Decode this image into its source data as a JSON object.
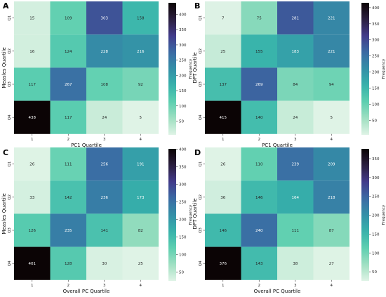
{
  "chart_data": [
    {
      "type": "heatmap",
      "panel_letter": "A",
      "xlabel": "PC1 Quartile",
      "ylabel": "Measles Quartile",
      "x_categories": [
        "1",
        "2",
        "3",
        "4"
      ],
      "y_categories": [
        "Q1",
        "Q2",
        "Q3",
        "Q4"
      ],
      "values": [
        [
          15,
          109,
          303,
          158
        ],
        [
          16,
          124,
          228,
          216
        ],
        [
          117,
          267,
          108,
          92
        ],
        [
          438,
          117,
          24,
          5
        ]
      ],
      "colorbar": {
        "label": "Frequency",
        "min": 5,
        "max": 438,
        "ticks": [
          50,
          100,
          150,
          200,
          250,
          300,
          350,
          400
        ]
      }
    },
    {
      "type": "heatmap",
      "panel_letter": "B",
      "xlabel": "PC1 Quartile",
      "ylabel": "DPT Quartile",
      "x_categories": [
        "1",
        "2",
        "3",
        "4"
      ],
      "y_categories": [
        "Q1",
        "Q2",
        "Q3",
        "Q4"
      ],
      "values": [
        [
          7,
          75,
          281,
          221
        ],
        [
          25,
          155,
          183,
          221
        ],
        [
          137,
          269,
          84,
          94
        ],
        [
          415,
          140,
          24,
          5
        ]
      ],
      "colorbar": {
        "label": "Frequency",
        "min": 5,
        "max": 415,
        "ticks": [
          50,
          100,
          150,
          200,
          250,
          300,
          350,
          400
        ]
      }
    },
    {
      "type": "heatmap",
      "panel_letter": "C",
      "xlabel": "Overall PC Quartile",
      "ylabel": "Measles Quartile",
      "x_categories": [
        "1",
        "2",
        "3",
        "4"
      ],
      "y_categories": [
        "Q1",
        "Q2",
        "Q3",
        "Q4"
      ],
      "values": [
        [
          26,
          111,
          256,
          191
        ],
        [
          33,
          142,
          236,
          173
        ],
        [
          126,
          235,
          141,
          82
        ],
        [
          401,
          128,
          30,
          25
        ]
      ],
      "colorbar": {
        "label": "Frequency",
        "min": 25,
        "max": 401,
        "ticks": [
          50,
          100,
          150,
          200,
          250,
          300,
          350,
          400
        ]
      }
    },
    {
      "type": "heatmap",
      "panel_letter": "D",
      "xlabel": "Overall PC Quartile",
      "ylabel": "DPT Quartile",
      "x_categories": [
        "1",
        "2",
        "3",
        "4"
      ],
      "y_categories": [
        "Q1",
        "Q2",
        "Q3",
        "Q4"
      ],
      "values": [
        [
          26,
          110,
          239,
          209
        ],
        [
          36,
          146,
          164,
          218
        ],
        [
          146,
          240,
          111,
          87
        ],
        [
          376,
          143,
          38,
          27
        ]
      ],
      "colorbar": {
        "label": "Frequency",
        "min": 26,
        "max": 376,
        "ticks": [
          50,
          100,
          150,
          200,
          250,
          300,
          350
        ]
      }
    }
  ],
  "colormap": {
    "name": "mako_r",
    "stops": [
      "#dff3e6",
      "#9fdfc1",
      "#5dcfb0",
      "#36b2ab",
      "#348fa7",
      "#3b6ba4",
      "#413b8a",
      "#2c1e3e",
      "#0b0405"
    ]
  }
}
